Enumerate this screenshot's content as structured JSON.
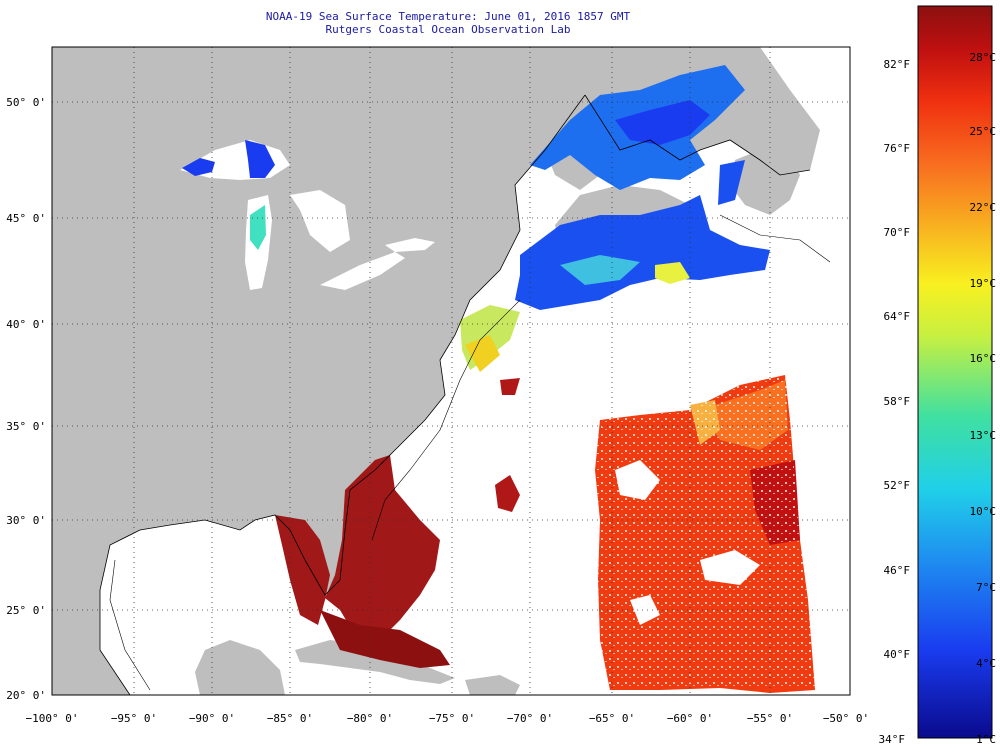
{
  "title_line1": "NOAA-19 Sea Surface Temperature:  June 01, 2016 1857 GMT",
  "title_line2": "Rutgers Coastal Ocean Observation Lab",
  "lon_labels": [
    "−100° 0'",
    "−95° 0'",
    "−90° 0'",
    "−85° 0'",
    "−80° 0'",
    "−75° 0'",
    "−70° 0'",
    "−65° 0'",
    "−60° 0'",
    "−55° 0'",
    "−50° 0'"
  ],
  "lat_labels": [
    "50° 0'",
    "45° 0'",
    "40° 0'",
    "35° 0'",
    "30° 0'",
    "25° 0'",
    "20° 0'"
  ],
  "colorbar": {
    "fahrenheit_labels": [
      "82°F",
      "76°F",
      "70°F",
      "64°F",
      "58°F",
      "52°F",
      "46°F",
      "40°F",
      "34°F"
    ],
    "celsius_labels": [
      "28°C",
      "25°C",
      "22°C",
      "19°C",
      "16°C",
      "13°C",
      "10°C",
      "7°C",
      "4°C",
      "1°C"
    ],
    "colors": [
      "#0a0a8c",
      "#1a3cf0",
      "#1e8cf0",
      "#20d0e8",
      "#40e0a0",
      "#c8f040",
      "#f8f020",
      "#f8b020",
      "#f87020",
      "#f03010",
      "#c01010",
      "#8c1010"
    ]
  },
  "colors": {
    "land": "#bebebe",
    "ocean_no_data": "#ffffff",
    "title_text": "#1a1aa0"
  }
}
